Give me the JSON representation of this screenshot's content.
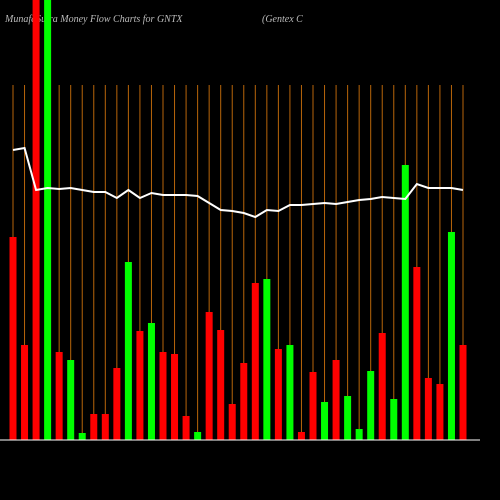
{
  "chart_data": {
    "type": "bar",
    "title": "MunafaSutra  Money Flow  Charts for GNTX",
    "subtitle": "(Gentex C",
    "categories": [
      null,
      null,
      null,
      null,
      null,
      null,
      null,
      null,
      null,
      null,
      null,
      null,
      null,
      null,
      null,
      null,
      null,
      null,
      null,
      null,
      null,
      null,
      null,
      null,
      null,
      null,
      null,
      null,
      null,
      null,
      null,
      null,
      null,
      null,
      null,
      null,
      null,
      null,
      null,
      null
    ],
    "values": [
      203,
      95,
      440,
      440,
      88,
      80,
      7,
      26,
      26,
      72,
      178,
      109,
      117,
      88,
      86,
      24,
      8,
      128,
      110,
      36,
      77,
      157,
      161,
      91,
      95,
      8,
      68,
      38,
      80,
      44,
      11,
      69,
      107,
      41,
      275,
      173,
      62,
      56,
      208,
      95
    ],
    "colors": [
      "#ff0000",
      "#ff0000",
      "#ff0000",
      "#00ff00",
      "#ff0000",
      "#00ff00",
      "#00ff00",
      "#ff0000",
      "#ff0000",
      "#ff0000",
      "#00ff00",
      "#ff0000",
      "#00ff00",
      "#ff0000",
      "#ff0000",
      "#ff0000",
      "#00ff00",
      "#ff0000",
      "#ff0000",
      "#ff0000",
      "#ff0000",
      "#ff0000",
      "#00ff00",
      "#ff0000",
      "#00ff00",
      "#ff0000",
      "#ff0000",
      "#00ff00",
      "#ff0000",
      "#00ff00",
      "#00ff00",
      "#00ff00",
      "#ff0000",
      "#00ff00",
      "#00ff00",
      "#ff0000",
      "#ff0000",
      "#ff0000",
      "#00ff00",
      "#ff0000"
    ],
    "line": {
      "color": "#ffffff",
      "values": [
        290,
        292,
        250,
        252,
        251,
        252,
        250,
        248,
        248,
        242,
        250,
        242,
        247,
        245,
        245,
        245,
        244,
        237,
        230,
        229,
        227,
        223,
        230,
        229,
        235,
        235,
        236,
        237,
        236,
        238,
        240,
        241,
        243,
        242,
        241,
        256,
        252,
        252,
        252,
        250
      ]
    },
    "ylim": [
      0,
      440
    ],
    "grid_color": "#b8650a"
  }
}
